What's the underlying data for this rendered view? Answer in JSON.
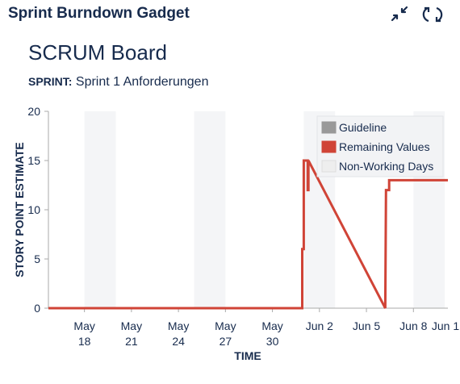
{
  "gadget": {
    "title": "Sprint Burndown Gadget",
    "icons": {
      "minimize": "collapse-arrows-icon",
      "refresh": "refresh-icon"
    }
  },
  "board": {
    "name": "SCRUM Board",
    "sprint_label": "SPRINT:",
    "sprint_name": "Sprint 1 Anforderungen"
  },
  "chart_data": {
    "type": "line",
    "xlabel": "TIME",
    "ylabel": "STORY POINT ESTIMATE",
    "ylim": [
      0,
      20
    ],
    "yticks": [
      0,
      5,
      10,
      15,
      20
    ],
    "xlim": [
      15.7,
      41.2
    ],
    "xticks": [
      {
        "day": 18,
        "line1": "May",
        "line2": "18"
      },
      {
        "day": 21,
        "line1": "May",
        "line2": "21"
      },
      {
        "day": 24,
        "line1": "May",
        "line2": "24"
      },
      {
        "day": 27,
        "line1": "May",
        "line2": "27"
      },
      {
        "day": 30,
        "line1": "May",
        "line2": "30"
      },
      {
        "day": 33,
        "line1": "Jun 2",
        "line2": ""
      },
      {
        "day": 36,
        "line1": "Jun 5",
        "line2": ""
      },
      {
        "day": 39,
        "line1": "Jun 8",
        "line2": ""
      },
      {
        "day": 41.8,
        "line1": "Jun 1",
        "line2": ""
      }
    ],
    "non_working_periods": [
      [
        18,
        20
      ],
      [
        25,
        27
      ],
      [
        32,
        34
      ],
      [
        39,
        41
      ]
    ],
    "series": [
      {
        "name": "Remaining Values",
        "color": "#d04437",
        "points": [
          [
            15.7,
            0
          ],
          [
            31.9,
            0
          ],
          [
            31.9,
            6
          ],
          [
            32.0,
            6
          ],
          [
            32.0,
            15
          ],
          [
            32.25,
            15
          ],
          [
            32.25,
            12
          ],
          [
            32.3,
            12
          ],
          [
            32.3,
            15
          ],
          [
            32.3,
            15
          ],
          [
            37.2,
            0
          ],
          [
            37.25,
            12
          ],
          [
            37.45,
            12
          ],
          [
            37.45,
            13
          ],
          [
            41.2,
            13
          ]
        ]
      }
    ],
    "legend": {
      "position": "top-right",
      "items": [
        {
          "label": "Guideline",
          "color": "#999999"
        },
        {
          "label": "Remaining Values",
          "color": "#d04437"
        },
        {
          "label": "Non-Working Days",
          "color": "#eeeeee"
        }
      ]
    },
    "grid": false
  },
  "colors": {
    "axis": "#aaaaaa",
    "text": "#172b4d",
    "nonworking": "#f4f5f7"
  }
}
